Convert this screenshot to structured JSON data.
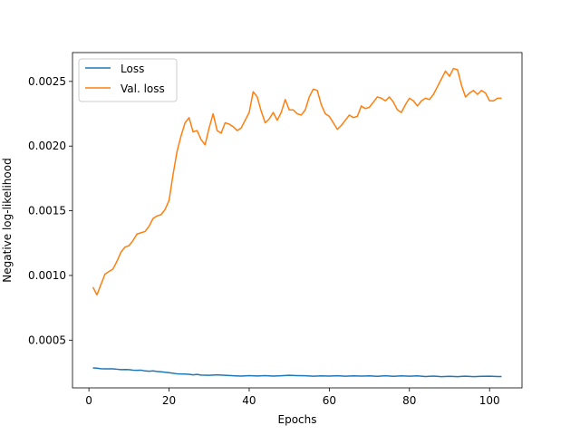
{
  "chart_data": {
    "type": "line",
    "xlabel": "Epochs",
    "ylabel": "Negative log-likelihood",
    "xlim": [
      -4.1,
      108.1
    ],
    "ylim": [
      0.000131,
      0.002723
    ],
    "xticks": [
      0,
      20,
      40,
      60,
      80,
      100
    ],
    "yticks": [
      0.0005,
      0.001,
      0.0015,
      0.002,
      0.0025
    ],
    "ytick_labels": [
      "0.0005",
      "0.0010",
      "0.0015",
      "0.0020",
      "0.0025"
    ],
    "grid": false,
    "legend": {
      "placement": "top-left"
    },
    "series": [
      {
        "name": "Loss",
        "color": "#1f77b4",
        "points": [
          [
            1,
            0.000285
          ],
          [
            2,
            0.000283
          ],
          [
            3,
            0.000279
          ],
          [
            4,
            0.000278
          ],
          [
            5,
            0.000278
          ],
          [
            6,
            0.000278
          ],
          [
            7,
            0.000275
          ],
          [
            8,
            0.000272
          ],
          [
            9,
            0.000273
          ],
          [
            10,
            0.000272
          ],
          [
            11,
            0.000268
          ],
          [
            12,
            0.000267
          ],
          [
            13,
            0.000268
          ],
          [
            14,
            0.000262
          ],
          [
            15,
            0.00026
          ],
          [
            16,
            0.000262
          ],
          [
            17,
            0.000258
          ],
          [
            18,
            0.000255
          ],
          [
            19,
            0.000252
          ],
          [
            20,
            0.000248
          ],
          [
            22,
            0.00024
          ],
          [
            24,
            0.000238
          ],
          [
            25,
            0.000236
          ],
          [
            26,
            0.000232
          ],
          [
            27,
            0.000235
          ],
          [
            28,
            0.00023
          ],
          [
            30,
            0.000228
          ],
          [
            32,
            0.000232
          ],
          [
            34,
            0.000228
          ],
          [
            36,
            0.000225
          ],
          [
            38,
            0.000222
          ],
          [
            40,
            0.000226
          ],
          [
            42,
            0.000223
          ],
          [
            44,
            0.000226
          ],
          [
            46,
            0.000222
          ],
          [
            48,
            0.000225
          ],
          [
            50,
            0.000228
          ],
          [
            52,
            0.000226
          ],
          [
            54,
            0.000225
          ],
          [
            56,
            0.000221
          ],
          [
            58,
            0.000224
          ],
          [
            60,
            0.000222
          ],
          [
            62,
            0.000225
          ],
          [
            64,
            0.000221
          ],
          [
            66,
            0.000224
          ],
          [
            68,
            0.000222
          ],
          [
            70,
            0.000224
          ],
          [
            72,
            0.00022
          ],
          [
            74,
            0.000225
          ],
          [
            76,
            0.00022
          ],
          [
            78,
            0.000224
          ],
          [
            80,
            0.000221
          ],
          [
            82,
            0.000224
          ],
          [
            84,
            0.000219
          ],
          [
            86,
            0.000222
          ],
          [
            88,
            0.000218
          ],
          [
            90,
            0.00022
          ],
          [
            92,
            0.000218
          ],
          [
            94,
            0.000221
          ],
          [
            96,
            0.000218
          ],
          [
            98,
            0.00022
          ],
          [
            100,
            0.000221
          ],
          [
            102,
            0.000219
          ],
          [
            103,
            0.000219
          ]
        ]
      },
      {
        "name": "Val. loss",
        "color": "#ff7f0e",
        "points": [
          [
            1,
            0.00091
          ],
          [
            2,
            0.00085
          ],
          [
            3,
            0.00093
          ],
          [
            4,
            0.00101
          ],
          [
            5,
            0.00103
          ],
          [
            6,
            0.00105
          ],
          [
            7,
            0.00111
          ],
          [
            8,
            0.00118
          ],
          [
            9,
            0.00122
          ],
          [
            10,
            0.00123
          ],
          [
            11,
            0.00127
          ],
          [
            12,
            0.00132
          ],
          [
            13,
            0.00133
          ],
          [
            14,
            0.00134
          ],
          [
            15,
            0.00138
          ],
          [
            16,
            0.00144
          ],
          [
            17,
            0.00146
          ],
          [
            18,
            0.00147
          ],
          [
            19,
            0.00151
          ],
          [
            20,
            0.00158
          ],
          [
            21,
            0.00178
          ],
          [
            22,
            0.00196
          ],
          [
            23,
            0.00208
          ],
          [
            24,
            0.00218
          ],
          [
            25,
            0.00222
          ],
          [
            26,
            0.00211
          ],
          [
            27,
            0.00212
          ],
          [
            28,
            0.00205
          ],
          [
            29,
            0.00201
          ],
          [
            30,
            0.00214
          ],
          [
            31,
            0.00225
          ],
          [
            32,
            0.00212
          ],
          [
            33,
            0.0021
          ],
          [
            34,
            0.00218
          ],
          [
            35,
            0.00217
          ],
          [
            36,
            0.00215
          ],
          [
            37,
            0.00212
          ],
          [
            38,
            0.00214
          ],
          [
            39,
            0.0022
          ],
          [
            40,
            0.00226
          ],
          [
            41,
            0.00242
          ],
          [
            42,
            0.00238
          ],
          [
            43,
            0.00227
          ],
          [
            44,
            0.00218
          ],
          [
            45,
            0.00221
          ],
          [
            46,
            0.00226
          ],
          [
            47,
            0.0022
          ],
          [
            48,
            0.00226
          ],
          [
            49,
            0.00236
          ],
          [
            50,
            0.00228
          ],
          [
            51,
            0.00228
          ],
          [
            52,
            0.00225
          ],
          [
            53,
            0.00224
          ],
          [
            54,
            0.00228
          ],
          [
            55,
            0.00238
          ],
          [
            56,
            0.00244
          ],
          [
            57,
            0.00243
          ],
          [
            58,
            0.00232
          ],
          [
            59,
            0.00225
          ],
          [
            60,
            0.00223
          ],
          [
            61,
            0.00218
          ],
          [
            62,
            0.00213
          ],
          [
            63,
            0.00216
          ],
          [
            64,
            0.0022
          ],
          [
            65,
            0.00224
          ],
          [
            66,
            0.00222
          ],
          [
            67,
            0.00223
          ],
          [
            68,
            0.00231
          ],
          [
            69,
            0.00229
          ],
          [
            70,
            0.0023
          ],
          [
            71,
            0.00234
          ],
          [
            72,
            0.00238
          ],
          [
            73,
            0.00237
          ],
          [
            74,
            0.00235
          ],
          [
            75,
            0.00238
          ],
          [
            76,
            0.00234
          ],
          [
            77,
            0.00228
          ],
          [
            78,
            0.00226
          ],
          [
            79,
            0.00232
          ],
          [
            80,
            0.00237
          ],
          [
            81,
            0.00235
          ],
          [
            82,
            0.00231
          ],
          [
            83,
            0.00235
          ],
          [
            84,
            0.00237
          ],
          [
            85,
            0.00236
          ],
          [
            86,
            0.0024
          ],
          [
            87,
            0.00246
          ],
          [
            88,
            0.00252
          ],
          [
            89,
            0.00258
          ],
          [
            90,
            0.00254
          ],
          [
            91,
            0.0026
          ],
          [
            92,
            0.00259
          ],
          [
            93,
            0.00247
          ],
          [
            94,
            0.00238
          ],
          [
            95,
            0.00241
          ],
          [
            96,
            0.00243
          ],
          [
            97,
            0.0024
          ],
          [
            98,
            0.00243
          ],
          [
            99,
            0.00241
          ],
          [
            100,
            0.00235
          ],
          [
            101,
            0.00235
          ],
          [
            102,
            0.00237
          ],
          [
            103,
            0.00237
          ]
        ]
      }
    ]
  }
}
